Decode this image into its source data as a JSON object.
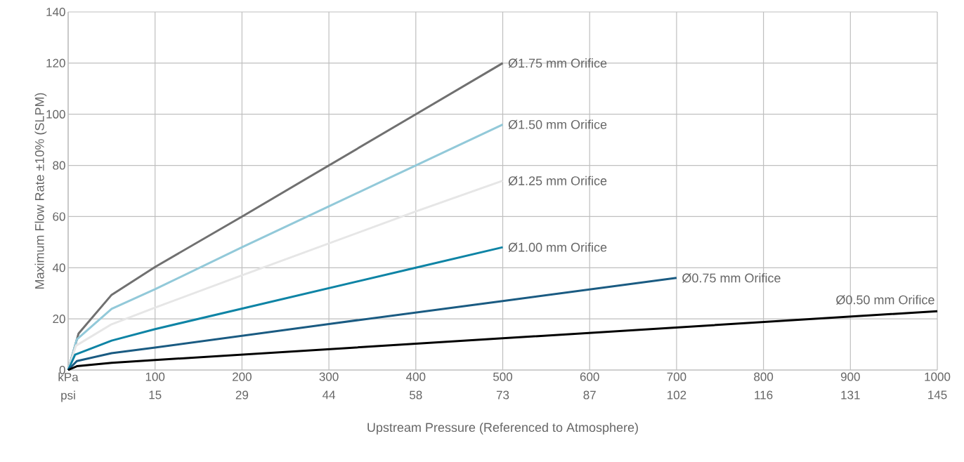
{
  "chart_data": {
    "type": "line",
    "xlabel": "Upstream Pressure (Referenced to Atmosphere)",
    "ylabel": "Maximum Flow Rate ±10% (SLPM)",
    "xlim": [
      0,
      1000
    ],
    "ylim": [
      0,
      140
    ],
    "xticks": [
      {
        "value": 0,
        "label": "kPa"
      },
      100,
      200,
      300,
      400,
      500,
      600,
      700,
      800,
      900,
      1000
    ],
    "x2lim": [
      0,
      145.04
    ],
    "x2ticks": [
      {
        "value": 0,
        "label": "psi"
      },
      {
        "value": 14.504,
        "label": "15"
      },
      {
        "value": 29.008,
        "label": "29"
      },
      {
        "value": 43.511,
        "label": "44"
      },
      {
        "value": 58.015,
        "label": "58"
      },
      {
        "value": 72.519,
        "label": "73"
      },
      {
        "value": 87.023,
        "label": "87"
      },
      {
        "value": 101.53,
        "label": "102"
      },
      {
        "value": 116.03,
        "label": "116"
      },
      {
        "value": 130.53,
        "label": "131"
      },
      {
        "value": 145.04,
        "label": "145"
      }
    ],
    "yticks": [
      0,
      20,
      40,
      60,
      80,
      100,
      120,
      140
    ],
    "grid": true,
    "legend": false,
    "marker": "none",
    "line_style": "solid",
    "series": [
      {
        "name": "Ø1.75 mm Orifice",
        "color": "#707070",
        "x": [
          0,
          12,
          50,
          100,
          200,
          300,
          400,
          500
        ],
        "values": [
          0,
          14.3,
          29.4,
          40.3,
          60,
          80,
          100,
          120
        ]
      },
      {
        "name": "Ø1.50 mm Orifice",
        "color": "#92c9d9",
        "x": [
          0,
          10,
          50,
          100,
          200,
          300,
          400,
          500
        ],
        "values": [
          0,
          12,
          23.9,
          31.6,
          48,
          64,
          80,
          96
        ]
      },
      {
        "name": "Ø1.25 mm Orifice",
        "color": "#e6e6e6",
        "x": [
          0,
          9,
          50,
          100,
          200,
          300,
          400,
          500
        ],
        "values": [
          0,
          9.5,
          17.9,
          24.4,
          37,
          49.5,
          62,
          74
        ]
      },
      {
        "name": "Ø1.00 mm Orifice",
        "color": "#0e84a5",
        "x": [
          0,
          8,
          50,
          100,
          200,
          300,
          400,
          500
        ],
        "values": [
          0,
          6,
          11.5,
          16,
          24,
          32,
          40,
          48
        ]
      },
      {
        "name": "Ø0.75 mm Orifice",
        "color": "#1a5b82",
        "x": [
          0,
          10,
          50,
          100,
          300,
          500,
          700
        ],
        "values": [
          0,
          3.5,
          6.6,
          8.8,
          18,
          27,
          36
        ]
      },
      {
        "name": "Ø0.50 mm Orifice",
        "color": "#000000",
        "x": [
          0,
          10,
          50,
          100,
          500,
          1000
        ],
        "values": [
          0,
          1.5,
          2.8,
          3.9,
          12.4,
          23
        ]
      }
    ]
  }
}
